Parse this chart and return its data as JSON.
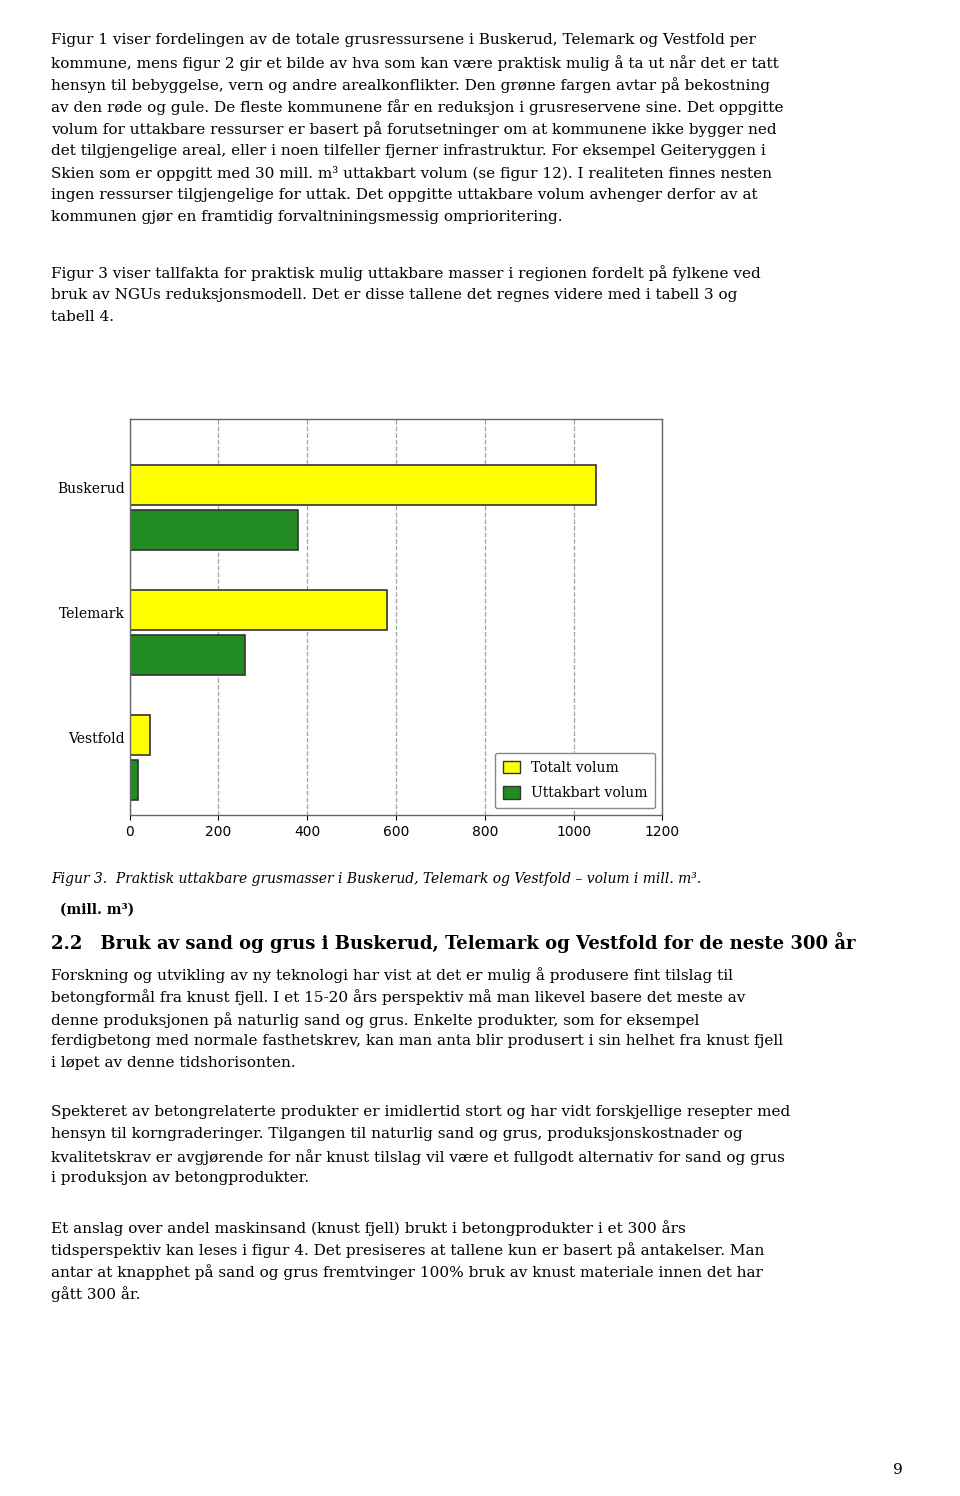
{
  "categories": [
    "Buskerud",
    "Telemark",
    "Vestfold"
  ],
  "totalt_volum": [
    1050,
    580,
    45
  ],
  "uttakbart_volum": [
    380,
    260,
    20
  ],
  "color_totalt": "#FFFF00",
  "color_uttakbart": "#228B22",
  "bar_edge_color": "#333333",
  "bar_edge_width": 1.2,
  "xlabel": "(mill. m³)",
  "xlim": [
    0,
    1200
  ],
  "xticks": [
    0,
    200,
    400,
    600,
    800,
    1000,
    1200
  ],
  "legend_totalt": "Totalt volum",
  "legend_uttakbart": "Uttakbart volum",
  "grid_color": "#999999",
  "grid_style": "--",
  "grid_alpha": 0.9,
  "figcaption": "Figur 3.  Praktisk uttakbare grusmasser i Buskerud, Telemark og Vestfold – volum i mill. m³.",
  "plot_bg_color": "#ffffff",
  "outer_bg_color": "#ffffff",
  "bar_height": 0.32,
  "bar_gap": 0.04,
  "tick_fontsize": 10,
  "legend_fontsize": 10,
  "caption_fontsize": 10,
  "body_fontsize": 11,
  "heading_fontsize": 13,
  "page_number": "9",
  "top_text_line1": "Figur 1 viser fordelingen av de totale grusressursene i Buskerud, Telemark og Vestfold per",
  "top_text_line2": "kommune, mens figur 2 gir et bilde av hva som kan være praktisk mulig å ta ut når det er tatt",
  "top_text_line3": "hensyn til bebyggelse, vern og andre arealkonflikter. Den grønne fargen avtar på bekostning",
  "top_text_line4": "av den røde og gule. De fleste kommunene får en reduksjon i grusreservene sine. Det oppgitte",
  "top_text_line5": "volum for uttakbare ressurser er basert på forutsetninger om at kommunene ikke bygger ned",
  "top_text_line6": "det tilgjengelige areal, eller i noen tilfeller fjerner infrastruktur. For eksempel Geiteryggen i",
  "top_text_line7": "Skien som er oppgitt med 30 mill. m³ uttakbart volum (se figur 12). I realiteten finnes nesten",
  "top_text_line8": "ingen ressurser tilgjengelige for uttak. Det oppgitte uttakbare volum avhenger derfor av at",
  "top_text_line9": "kommunen gjør en framtidig forvaltniningsmessig omprioritering.",
  "mid_text_line1": "Figur 3 viser tallfakta for praktisk mulig uttakbare masser i regionen fordelt på fylkene ved",
  "mid_text_line2": "bruk av NGUs reduksjonsmodell. Det er disse tallene det regnes videre med i tabell 3 og",
  "mid_text_line3": "tabell 4.",
  "heading22": "2.2  Bruk av sand og grus i Buskerud, Telemark og Vestfold for de neste 300 år",
  "para1_line1": "Forskning og utvikling av ny teknologi har vist at det er mulig å produsere fint tilslag til",
  "para1_line2": "betongformål fra knust fjell. I et 15-20 års perspektiv må man likevel basere det meste av",
  "para1_line3": "denne produksjonen på naturlig sand og grus. Enkelte produkter, som for eksempel",
  "para1_line4": "ferdigbetong med normale fasthetskrev, kan man anta blir produsert i sin helhet fra knust fjell",
  "para1_line5": "i løpet av denne tidshorisonten.",
  "para2_line1": "Spekteret av betongrelaterte produkter er imidlertid stort og har vidt forskjellige resepter med",
  "para2_line2": "hensyn til korngraderinger. Tilgangen til naturlig sand og grus, produksjonskostnader og",
  "para2_line3": "kvalitetskrav er avgjørende for når knust tilslag vil være et fullgodt alternativ for sand og grus",
  "para2_line4": "i produksjon av betongprodukter.",
  "para3_line1": "Et anslag over andel maskinsand (knust fjell) brukt i betongprodukter i et 300 års",
  "para3_line2": "tidsperspektiv kan leses i figur 4. Det presiseres at tallene kun er basert på antakelser. Man",
  "para3_line3": "antar at knapphet på sand og grus fremtvinger 100% bruk av knust materiale innen det har",
  "para3_line4": "gått 300 år."
}
